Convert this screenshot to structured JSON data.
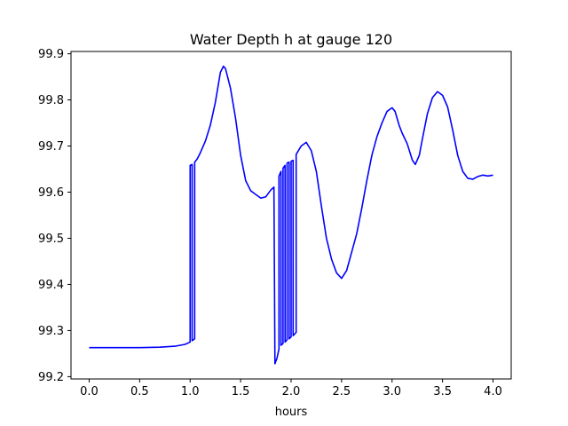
{
  "chart_data": {
    "type": "line",
    "title": "Water Depth h at gauge 120",
    "xlabel": "hours",
    "ylabel": "",
    "xlim": [
      -0.18,
      4.18
    ],
    "ylim": [
      99.195,
      99.905
    ],
    "xticks": [
      "0.0",
      "0.5",
      "1.0",
      "1.5",
      "2.0",
      "2.5",
      "3.0",
      "3.5",
      "4.0"
    ],
    "yticks": [
      "99.2",
      "99.3",
      "99.4",
      "99.5",
      "99.6",
      "99.7",
      "99.8",
      "99.9"
    ],
    "grid": false,
    "colors": {
      "line": "#0000ff",
      "axes": "#000000",
      "background": "#ffffff"
    },
    "series": [
      {
        "x": [
          0.0,
          0.3,
          0.5,
          0.7,
          0.85,
          0.95,
          0.98,
          1.0,
          1.0,
          1.02,
          1.02,
          1.045,
          1.045,
          1.07,
          1.1,
          1.15,
          1.2,
          1.25,
          1.3,
          1.33,
          1.35,
          1.4,
          1.45,
          1.5,
          1.55,
          1.6,
          1.65,
          1.7,
          1.75,
          1.8,
          1.83,
          1.84,
          1.84,
          1.86,
          1.88,
          1.88,
          1.9,
          1.9,
          1.92,
          1.92,
          1.94,
          1.94,
          1.96,
          1.96,
          1.98,
          1.98,
          2.0,
          2.0,
          2.02,
          2.02,
          2.05,
          2.05,
          2.1,
          2.15,
          2.2,
          2.25,
          2.3,
          2.35,
          2.4,
          2.45,
          2.5,
          2.55,
          2.6,
          2.65,
          2.7,
          2.75,
          2.8,
          2.85,
          2.9,
          2.95,
          3.0,
          3.03,
          3.07,
          3.1,
          3.15,
          3.2,
          3.23,
          3.27,
          3.3,
          3.35,
          3.4,
          3.45,
          3.5,
          3.55,
          3.6,
          3.65,
          3.7,
          3.75,
          3.8,
          3.85,
          3.9,
          3.95,
          4.0
        ],
        "y": [
          99.263,
          99.263,
          99.263,
          99.264,
          99.266,
          99.27,
          99.273,
          99.275,
          99.658,
          99.66,
          99.278,
          99.282,
          99.665,
          99.672,
          99.685,
          99.71,
          99.745,
          99.795,
          99.86,
          99.873,
          99.868,
          99.825,
          99.76,
          99.68,
          99.625,
          99.603,
          99.595,
          99.587,
          99.59,
          99.605,
          99.611,
          99.228,
          99.228,
          99.24,
          99.26,
          99.635,
          99.645,
          99.268,
          99.272,
          99.652,
          99.658,
          99.275,
          99.28,
          99.663,
          99.665,
          99.282,
          99.286,
          99.667,
          99.669,
          99.289,
          99.296,
          99.682,
          99.7,
          99.708,
          99.69,
          99.645,
          99.57,
          99.5,
          99.455,
          99.425,
          99.413,
          99.43,
          99.47,
          99.51,
          99.565,
          99.625,
          99.68,
          99.72,
          99.75,
          99.775,
          99.783,
          99.775,
          99.745,
          99.728,
          99.705,
          99.67,
          99.66,
          99.68,
          99.715,
          99.77,
          99.805,
          99.818,
          99.81,
          99.785,
          99.735,
          99.68,
          99.645,
          99.63,
          99.628,
          99.634,
          99.637,
          99.635,
          99.637
        ]
      }
    ]
  }
}
